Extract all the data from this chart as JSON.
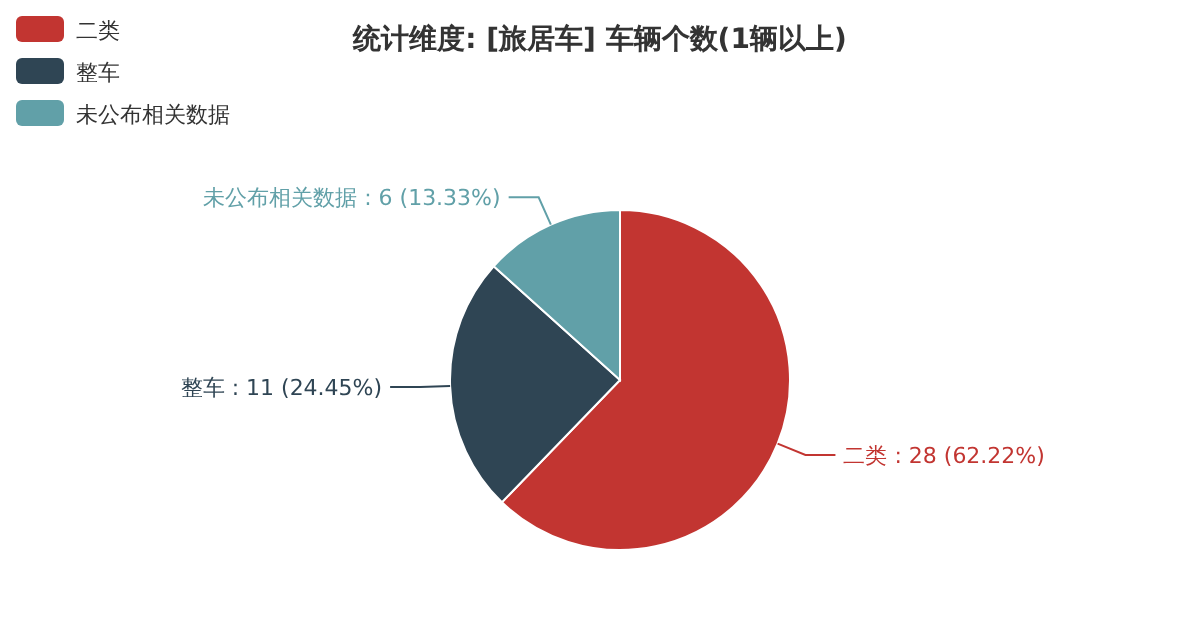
{
  "chart_data": {
    "type": "pie",
    "title": "统计维度: [旅居车] 车辆个数(1辆以上)",
    "categories": [
      "二类",
      "整车",
      "未公布相关数据"
    ],
    "values": [
      28,
      11,
      6
    ],
    "colors": [
      "#c23531",
      "#2f4554",
      "#61a0a8"
    ],
    "value_labels": [
      "二类 : 28 (62.22%)",
      "整车 : 11 (24.45%)",
      "未公布相关数据 : 6 (13.33%)"
    ],
    "legend": "top left"
  }
}
